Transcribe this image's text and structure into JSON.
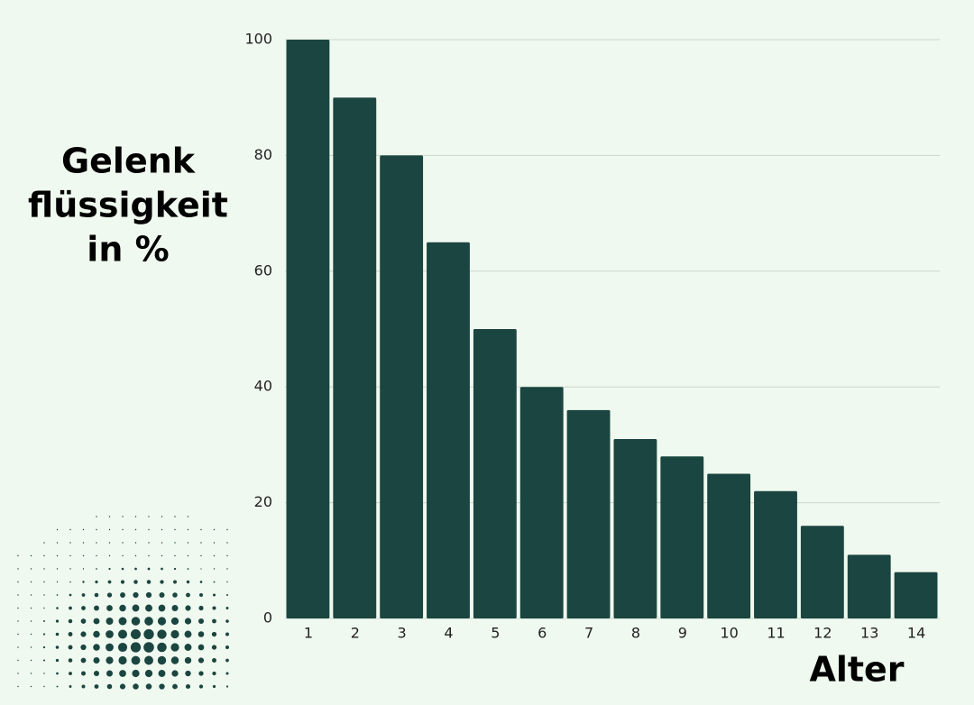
{
  "chart_data": {
    "type": "bar",
    "y_label": [
      "Gelenk",
      "flüssigkeit",
      "in %"
    ],
    "x_label": "Alter",
    "categories": [
      "1",
      "2",
      "3",
      "4",
      "5",
      "6",
      "7",
      "8",
      "9",
      "10",
      "11",
      "12",
      "13",
      "14"
    ],
    "values": [
      100,
      90,
      80,
      65,
      50,
      40,
      36,
      31,
      28,
      25,
      22,
      16,
      11,
      8
    ],
    "color": "#1b4540",
    "ylim": [
      0,
      100
    ],
    "yticks": [
      0,
      20,
      40,
      60,
      80,
      100
    ],
    "grid": true
  }
}
